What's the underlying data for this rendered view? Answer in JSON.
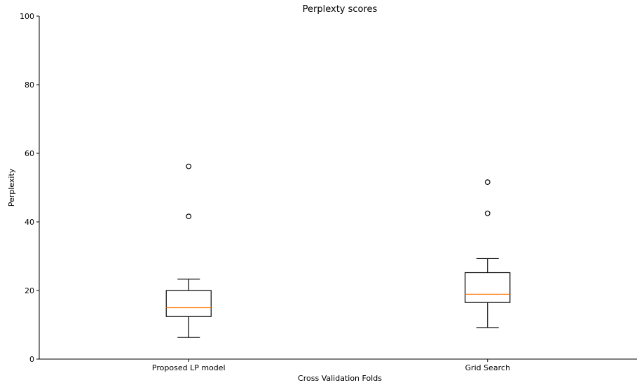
{
  "chart_data": {
    "type": "box",
    "title": "Perplexty scores",
    "xlabel": "Cross Validation Folds",
    "ylabel": "Perplexity",
    "ylim": [
      0,
      100
    ],
    "yticks": [
      0,
      20,
      40,
      60,
      80,
      100
    ],
    "grid": false,
    "colors": {
      "box": "#000000",
      "median": "#ff7f0e",
      "flier": "#000000"
    },
    "categories": [
      "Proposed LP model",
      "Grid Search"
    ],
    "boxes": [
      {
        "category": "Proposed LP model",
        "whisker_low": 6.3,
        "q1": 12.4,
        "median": 15.0,
        "q3": 20.0,
        "whisker_high": 23.3,
        "outliers": [
          41.6,
          56.2
        ]
      },
      {
        "category": "Grid Search",
        "whisker_low": 9.2,
        "q1": 16.5,
        "median": 18.9,
        "q3": 25.2,
        "whisker_high": 29.3,
        "outliers": [
          42.5,
          51.6
        ]
      }
    ]
  }
}
